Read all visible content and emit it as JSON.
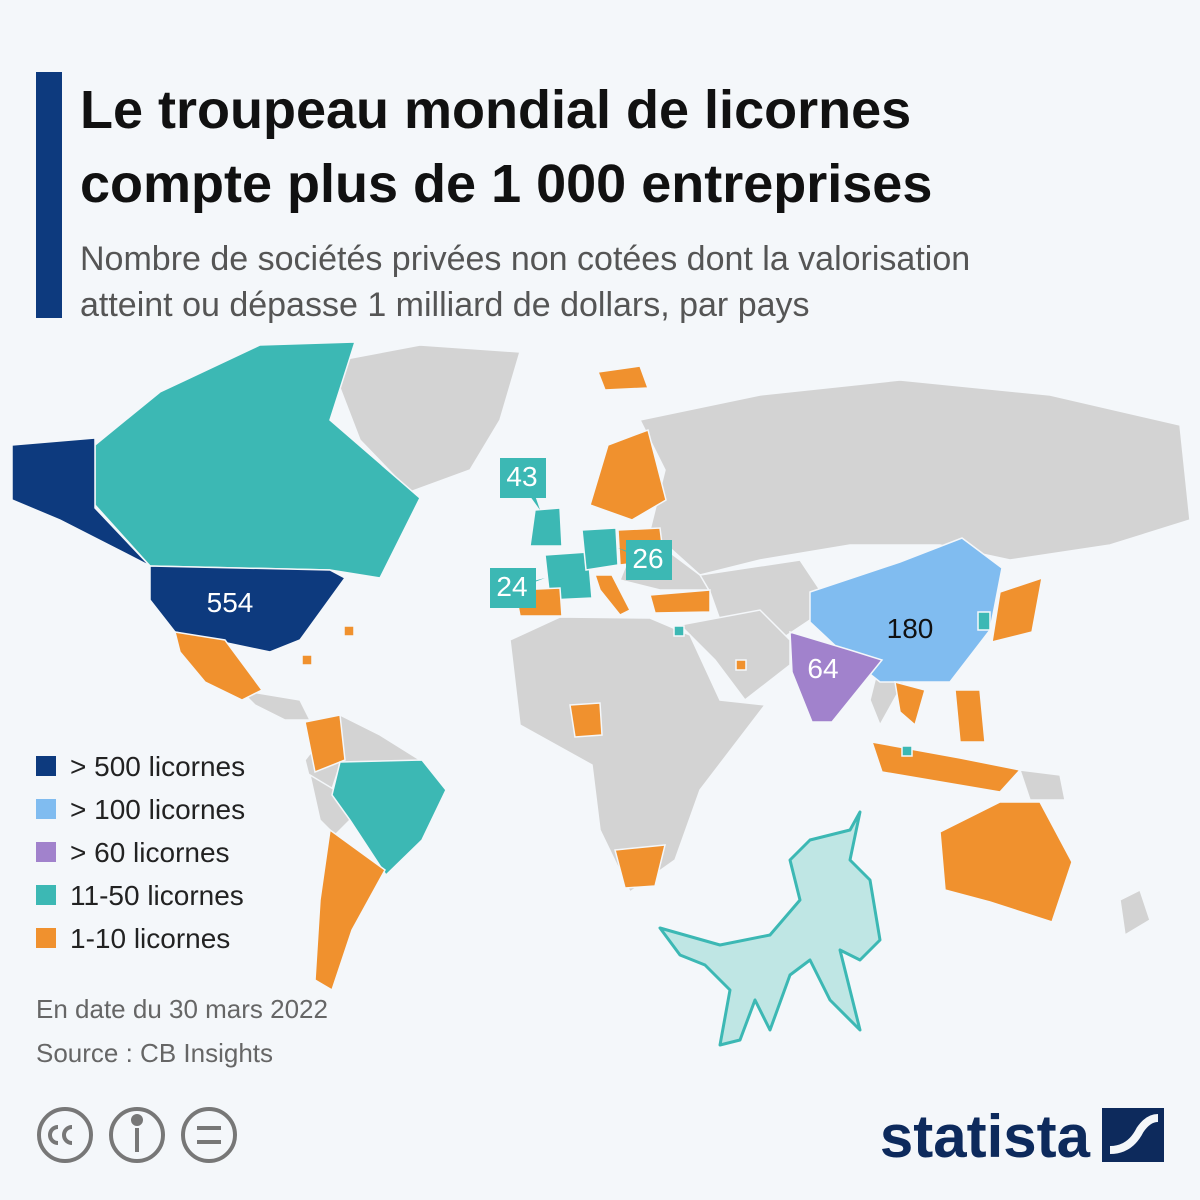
{
  "header": {
    "title": [
      "Le troupeau mondial de licornes",
      "compte plus de 1 000 entreprises"
    ],
    "subtitle": [
      "Nombre de sociétés privées non cotées dont la valorisation",
      "atteint ou dépasse 1 milliard de dollars, par pays"
    ]
  },
  "legend": [
    {
      "label": "> 500 licornes",
      "color": "#0d3a7e"
    },
    {
      "label": "> 100 licornes",
      "color": "#80bcf0"
    },
    {
      "label": "> 60 licornes",
      "color": "#a182cc"
    },
    {
      "label": "11-50 licornes",
      "color": "#3cb8b4"
    },
    {
      "label": "1-10 licornes",
      "color": "#f0912e"
    }
  ],
  "map_labels": [
    554,
    180,
    64,
    43,
    26,
    24
  ],
  "notes": [
    "En date du 30 mars 2022",
    "Source : CB Insights"
  ],
  "brand": "statista"
}
